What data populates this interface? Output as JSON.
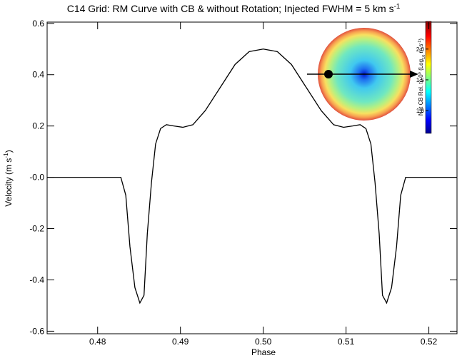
{
  "chart_data": {
    "type": "line",
    "title": {
      "text": "C14 Grid: RM Curve with CB & without Rotation; Injected FWHM = 5 km s",
      "sup": "-1"
    },
    "xlabel": "Phase",
    "ylabel": {
      "text": "Velocity (m s",
      "sup": "-1",
      "tail": ")"
    },
    "x": [
      0.4739,
      0.4828,
      0.4834,
      0.4839,
      0.4845,
      0.4851,
      0.4856,
      0.486,
      0.4865,
      0.487,
      0.4876,
      0.4883,
      0.4892,
      0.4903,
      0.4915,
      0.493,
      0.4948,
      0.4966,
      0.4983,
      0.5,
      0.5017,
      0.5034,
      0.5052,
      0.507,
      0.5085,
      0.5097,
      0.5108,
      0.5117,
      0.5124,
      0.513,
      0.5135,
      0.514,
      0.5144,
      0.5149,
      0.5155,
      0.5161,
      0.5166,
      0.5172,
      0.5234
    ],
    "values": [
      0,
      0,
      -0.07,
      -0.27,
      -0.43,
      -0.49,
      -0.46,
      -0.22,
      -0.02,
      0.13,
      0.19,
      0.205,
      0.2,
      0.195,
      0.205,
      0.26,
      0.35,
      0.44,
      0.49,
      0.5,
      0.49,
      0.44,
      0.35,
      0.26,
      0.205,
      0.195,
      0.2,
      0.205,
      0.19,
      0.13,
      -0.02,
      -0.22,
      -0.46,
      -0.49,
      -0.43,
      -0.27,
      -0.07,
      0,
      0
    ],
    "color": "#000000",
    "xlim": [
      0.4739,
      0.5234
    ],
    "ylim": [
      -0.61,
      0.605
    ],
    "xticks": [
      0.48,
      0.49,
      {
        "value": 0.5,
        "label": "0.50"
      },
      0.51,
      0.52
    ],
    "yticks": [
      0.6,
      0.4,
      0.2,
      {
        "value": 0,
        "label": "-0.0"
      },
      -0.2,
      -0.4,
      -0.6
    ],
    "colorbar": {
      "label": [
        "Net CB Rel. to 0",
        "o",
        " (Log",
        "10",
        " m s",
        "-1",
        ")"
      ],
      "lim": [
        0.63,
        2.45
      ],
      "ticks": [
        {
          "value": 1.0,
          "label": "1.0"
        },
        {
          "value": 1.5,
          "label": "1.5"
        },
        {
          "value": 2.0,
          "label": "2.0"
        }
      ]
    }
  }
}
